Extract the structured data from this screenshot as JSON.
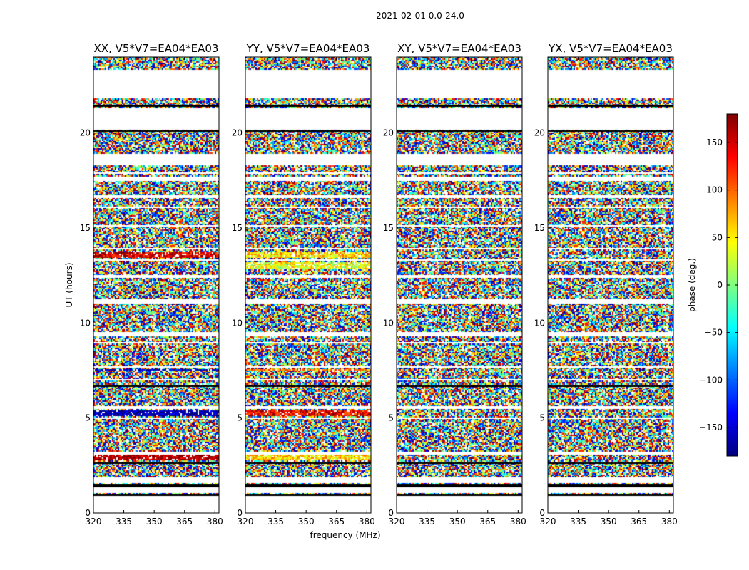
{
  "suptitle": "2021-02-01 0.0-24.0",
  "chart_data": {
    "type": "heatmap",
    "xlabel": "frequency (MHz)",
    "ylabel": "UT (hours)",
    "xlim": [
      320,
      382
    ],
    "ylim": [
      0,
      24
    ],
    "xticks": [
      320,
      335,
      350,
      365,
      380
    ],
    "yticks": [
      0,
      5,
      10,
      15,
      20
    ],
    "panels": [
      {
        "title": "XX, V5*V7=EA04*EA03",
        "polarization": "XX",
        "tone_bands": [
          {
            "from": 13.4,
            "to": 13.7,
            "phase": 150
          },
          {
            "from": 5.1,
            "to": 5.4,
            "phase": -170
          },
          {
            "from": 2.8,
            "to": 3.1,
            "phase": 170
          },
          {
            "from": 7.5,
            "to": 7.6,
            "phase": -150
          }
        ]
      },
      {
        "title": "YY, V5*V7=EA04*EA03",
        "polarization": "YY",
        "tone_bands": [
          {
            "from": 13.4,
            "to": 13.7,
            "phase": 60
          },
          {
            "from": 12.8,
            "to": 13.2,
            "phase": 40
          },
          {
            "from": 5.1,
            "to": 5.4,
            "phase": 140
          },
          {
            "from": 2.8,
            "to": 3.1,
            "phase": 60
          },
          {
            "from": 7.5,
            "to": 7.6,
            "phase": 90
          }
        ]
      },
      {
        "title": "XY, V5*V7=EA04*EA03",
        "polarization": "XY",
        "tone_bands": []
      },
      {
        "title": "YX, V5*V7=EA04*EA03",
        "polarization": "YX",
        "tone_bands": []
      }
    ],
    "flagged_bands_hours": [
      [
        0,
        0.95
      ],
      [
        1.05,
        1.35
      ],
      [
        1.6,
        1.9
      ],
      [
        3.05,
        3.2
      ],
      [
        4.95,
        5.05
      ],
      [
        5.45,
        5.6
      ],
      [
        6.95,
        7.05
      ],
      [
        7.4,
        7.45
      ],
      [
        7.65,
        7.75
      ],
      [
        8.9,
        9.0
      ],
      [
        9.3,
        9.5
      ],
      [
        11.05,
        11.25
      ],
      [
        12.4,
        12.5
      ],
      [
        13.25,
        13.35
      ],
      [
        13.85,
        13.95
      ],
      [
        15.05,
        15.15
      ],
      [
        16.05,
        16.15
      ],
      [
        16.6,
        16.75
      ],
      [
        17.5,
        17.7
      ],
      [
        17.85,
        17.95
      ],
      [
        18.3,
        18.9
      ],
      [
        20.2,
        21.3
      ],
      [
        21.8,
        23.3
      ]
    ],
    "colorbar": {
      "label": "phase (deg.)",
      "range": [
        -180,
        180
      ],
      "ticks": [
        -150,
        -100,
        -50,
        0,
        50,
        100,
        150
      ],
      "tick_labels": [
        "−150",
        "−100",
        "−50",
        "0",
        "50",
        "100",
        "150"
      ],
      "colormap": "jet"
    }
  }
}
